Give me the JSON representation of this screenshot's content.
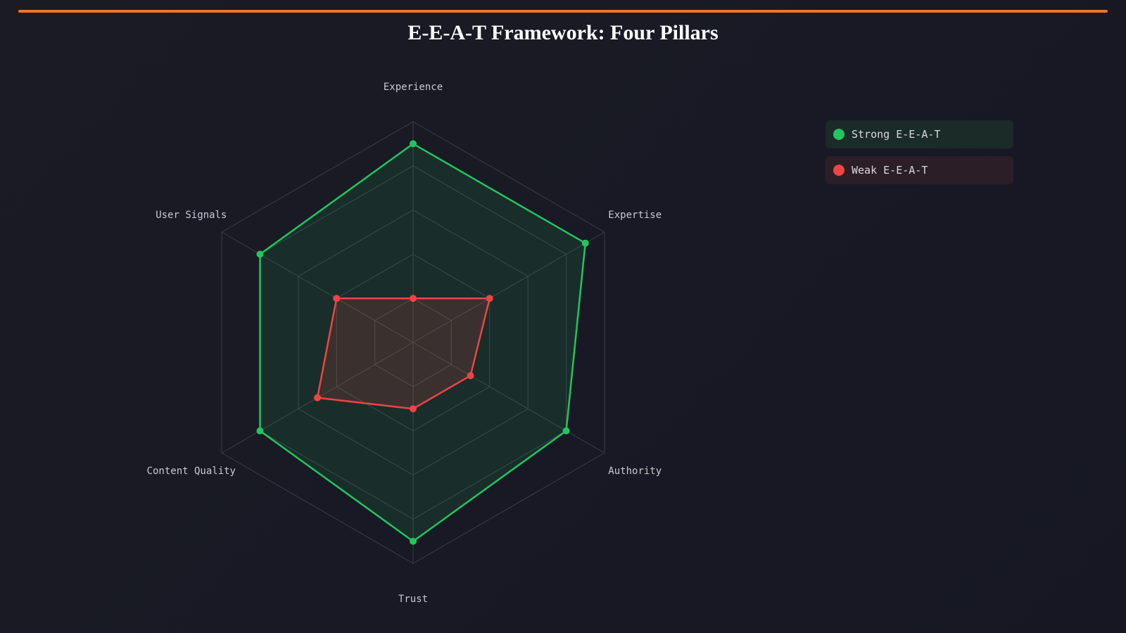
{
  "title": "E-E-A-T Framework: Four Pillars",
  "colors": {
    "accent": "#f0732a",
    "strong": "#22c55e",
    "weak": "#ef4444",
    "grid": "#3a3c48"
  },
  "chart_data": {
    "type": "radar",
    "title": "E-E-A-T Framework: Four Pillars",
    "axes": [
      "Experience",
      "Expertise",
      "Authority",
      "Trust",
      "Content Quality",
      "User Signals"
    ],
    "rlim": [
      0,
      100
    ],
    "grid_levels": 5,
    "series": [
      {
        "name": "Strong E-E-A-T",
        "color": "#22c55e",
        "values": [
          90,
          90,
          80,
          90,
          80,
          80
        ]
      },
      {
        "name": "Weak E-E-A-T",
        "color": "#ef4444",
        "values": [
          20,
          40,
          30,
          30,
          50,
          40
        ]
      }
    ],
    "legend_position": "top-right"
  },
  "legend": [
    {
      "label": "Strong E-E-A-T",
      "color": "#22c55e",
      "bg": "#1b2b28"
    },
    {
      "label": "Weak E-E-A-T",
      "color": "#ef4444",
      "bg": "#2b1e26"
    }
  ]
}
